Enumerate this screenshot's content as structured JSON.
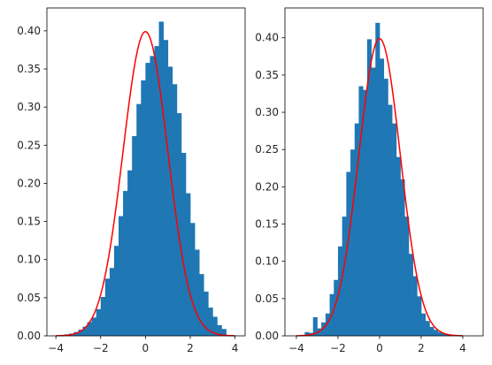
{
  "chart_data": [
    {
      "type": "bar",
      "hist_color": "#1f77b4",
      "curve_color": "#ff0000",
      "xlim": [
        -4.4,
        4.45
      ],
      "ylim": [
        0,
        0.43
      ],
      "xticks": [
        -4,
        -2,
        0,
        2,
        4
      ],
      "xtick_labels": [
        "−4",
        "−2",
        "0",
        "2",
        "4"
      ],
      "yticks": [
        0.0,
        0.05,
        0.1,
        0.15,
        0.2,
        0.25,
        0.3,
        0.35,
        0.4
      ],
      "ytick_labels": [
        "0.00",
        "0.05",
        "0.10",
        "0.15",
        "0.20",
        "0.25",
        "0.30",
        "0.35",
        "0.40"
      ],
      "bins": {
        "x": [
          -3.6,
          -3.4,
          -3.2,
          -3.0,
          -2.8,
          -2.6,
          -2.4,
          -2.2,
          -2.0,
          -1.8,
          -1.6,
          -1.4,
          -1.2,
          -1.0,
          -0.8,
          -0.6,
          -0.4,
          -0.2,
          0.0,
          0.2,
          0.4,
          0.6,
          0.8,
          1.0,
          1.2,
          1.4,
          1.6,
          1.8,
          2.0,
          2.2,
          2.4,
          2.6,
          2.8,
          3.0,
          3.2,
          3.4
        ],
        "y": [
          0.002,
          0.003,
          0.005,
          0.008,
          0.012,
          0.018,
          0.024,
          0.035,
          0.051,
          0.075,
          0.089,
          0.118,
          0.157,
          0.19,
          0.217,
          0.262,
          0.304,
          0.335,
          0.358,
          0.367,
          0.38,
          0.412,
          0.388,
          0.353,
          0.33,
          0.292,
          0.24,
          0.187,
          0.148,
          0.113,
          0.081,
          0.058,
          0.037,
          0.025,
          0.014,
          0.009
        ]
      },
      "curve": "normal(0,1)"
    },
    {
      "type": "bar",
      "hist_color": "#1f77b4",
      "curve_color": "#ff0000",
      "xlim": [
        -4.55,
        4.98
      ],
      "ylim": [
        0,
        0.44
      ],
      "xticks": [
        -4,
        -2,
        0,
        2,
        4
      ],
      "xtick_labels": [
        "−4",
        "−2",
        "0",
        "2",
        "4"
      ],
      "yticks": [
        0.0,
        0.05,
        0.1,
        0.15,
        0.2,
        0.25,
        0.3,
        0.35,
        0.4
      ],
      "ytick_labels": [
        "0.00",
        "0.05",
        "0.10",
        "0.15",
        "0.20",
        "0.25",
        "0.30",
        "0.35",
        "0.40"
      ],
      "bins": {
        "x": [
          -3.6,
          -3.4,
          -3.2,
          -3.0,
          -2.8,
          -2.6,
          -2.4,
          -2.2,
          -2.0,
          -1.8,
          -1.6,
          -1.4,
          -1.2,
          -1.0,
          -0.8,
          -0.6,
          -0.4,
          -0.2,
          0.0,
          0.2,
          0.4,
          0.6,
          0.8,
          1.0,
          1.2,
          1.4,
          1.6,
          1.8,
          2.0,
          2.2,
          2.4,
          2.6,
          2.8,
          3.0,
          3.2,
          3.4
        ],
        "y": [
          0.005,
          0.004,
          0.025,
          0.01,
          0.018,
          0.03,
          0.056,
          0.075,
          0.12,
          0.16,
          0.22,
          0.25,
          0.285,
          0.335,
          0.33,
          0.398,
          0.36,
          0.42,
          0.372,
          0.345,
          0.31,
          0.285,
          0.24,
          0.21,
          0.16,
          0.11,
          0.08,
          0.053,
          0.03,
          0.02,
          0.012,
          0.008,
          0.005,
          0.003,
          0.002,
          0.001
        ]
      },
      "curve": "normal(0,1)"
    }
  ]
}
